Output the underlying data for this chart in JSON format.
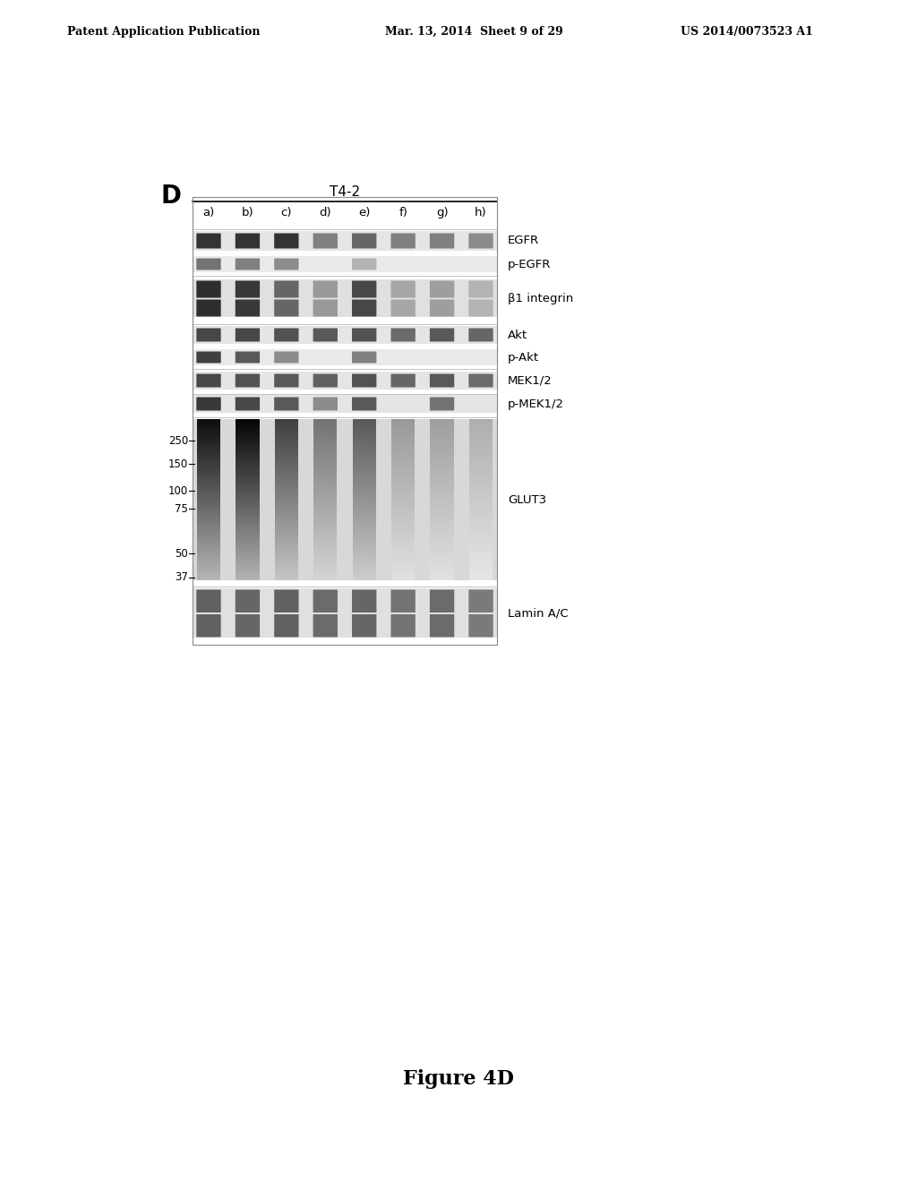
{
  "header_left": "Patent Application Publication",
  "header_mid": "Mar. 13, 2014  Sheet 9 of 29",
  "header_right": "US 2014/0073523 A1",
  "panel_label": "D",
  "title_label": "T4-2",
  "lane_labels": [
    "a)",
    "b)",
    "c)",
    "d)",
    "e)",
    "f)",
    "g)",
    "h)"
  ],
  "row_labels": [
    "EGFR",
    "p-EGFR",
    "β1 integrin",
    "Akt",
    "p-Akt",
    "MEK1/2",
    "p-MEK1/2",
    "GLUT3",
    "Lamin A/C"
  ],
  "mw_markers": [
    "250",
    "150",
    "100",
    "75",
    "50",
    "37"
  ],
  "figure_caption": "Figure 4D",
  "bg_color": "#ffffff",
  "panel_bg": "#e8e8e8",
  "band_dark": "#1a1a1a",
  "band_medium": "#555555",
  "band_light": "#999999",
  "band_vlight": "#bbbbbb",
  "band_faint": "#cccccc"
}
